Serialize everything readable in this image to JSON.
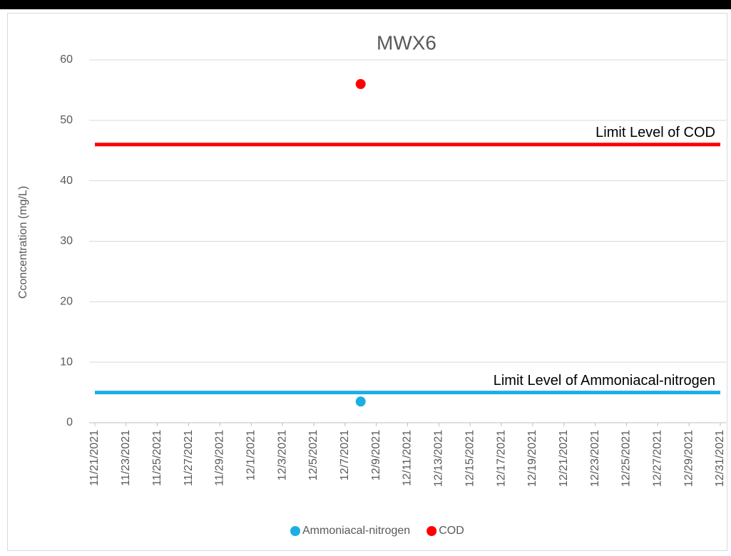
{
  "chart_data": {
    "type": "scatter",
    "title": "MWX6",
    "y_label": "Cconcentration (mg/L)",
    "xticks": [
      "11/21/2021",
      "11/23/2021",
      "11/25/2021",
      "11/27/2021",
      "11/29/2021",
      "12/1/2021",
      "12/3/2021",
      "12/5/2021",
      "12/7/2021",
      "12/9/2021",
      "12/11/2021",
      "12/13/2021",
      "12/15/2021",
      "12/17/2021",
      "12/19/2021",
      "12/21/2021",
      "12/23/2021",
      "12/25/2021",
      "12/27/2021",
      "12/29/2021",
      "12/31/2021"
    ],
    "xlim": [
      "11/21/2021",
      "12/31/2021"
    ],
    "ylim": [
      0,
      60
    ],
    "yticks": [
      0,
      10,
      20,
      30,
      40,
      50,
      60
    ],
    "grid": true,
    "series": [
      {
        "name": "Ammoniacal-nitrogen",
        "color": "#1aaee5",
        "x": [
          "12/8/2021"
        ],
        "values": [
          3.5
        ]
      },
      {
        "name": "COD",
        "color": "#ff0000",
        "x": [
          "12/8/2021"
        ],
        "values": [
          56
        ]
      }
    ],
    "limits": [
      {
        "label": "Limit Level of COD",
        "value": 46,
        "color": "#ff0000"
      },
      {
        "label": "Limit Level of Ammoniacal-nitrogen",
        "value": 5,
        "color": "#1aaee5"
      }
    ]
  }
}
